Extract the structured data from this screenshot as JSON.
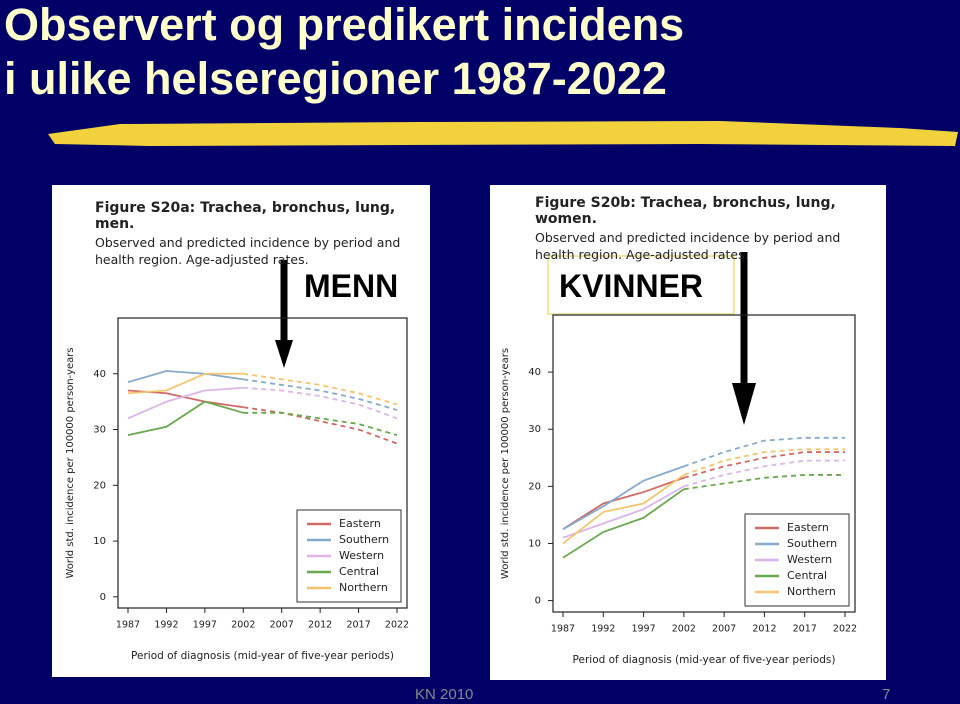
{
  "slide": {
    "title": [
      "Observert og predikert incidens",
      "i ulike helseregioner 1987-2022"
    ],
    "labels": [
      "MENN",
      "KVINNER"
    ],
    "footer": "KN 2010",
    "page": "7"
  },
  "chart_data": [
    {
      "type": "line",
      "title": "Figure S20a: Trachea, bronchus, lung, men.",
      "subtitle": "Observed and predicted incidence by period and health region. Age-adjusted rates.",
      "x_label": "Period of diagnosis (mid-year of five-year periods)",
      "y_label": "World std. incidence per 100000 person-years",
      "categories": [
        "1987",
        "1992",
        "1997",
        "2002",
        "2007",
        "2012",
        "2017",
        "2022"
      ],
      "ylim": [
        -2,
        50
      ],
      "yticks": [
        0,
        10,
        20,
        30,
        40
      ],
      "legend": "lower right",
      "series": [
        {
          "name": "Eastern",
          "color": "#d06a66",
          "values": [
            37,
            36.5,
            35,
            34,
            null,
            null,
            null,
            null
          ],
          "predicted": [
            null,
            null,
            null,
            34,
            33,
            31.5,
            30,
            27.5
          ]
        },
        {
          "name": "Southern",
          "color": "#86aacb",
          "values": [
            38.5,
            40.5,
            40,
            39,
            null,
            null,
            null,
            null
          ],
          "predicted": [
            null,
            null,
            null,
            39,
            38,
            37,
            35.5,
            33.5
          ]
        },
        {
          "name": "Western",
          "color": "#dcb6e8",
          "values": [
            32,
            35,
            37,
            37.5,
            null,
            null,
            null,
            null
          ],
          "predicted": [
            null,
            null,
            null,
            37.5,
            37,
            36,
            34.5,
            32
          ]
        },
        {
          "name": "Central",
          "color": "#6aa84f",
          "values": [
            29,
            30.5,
            35,
            33,
            null,
            null,
            null,
            null
          ],
          "predicted": [
            null,
            null,
            null,
            33,
            33,
            32,
            31,
            29
          ]
        },
        {
          "name": "Northern",
          "color": "#f5c46e",
          "values": [
            36.5,
            37,
            40,
            40,
            null,
            null,
            null,
            null
          ],
          "predicted": [
            null,
            null,
            null,
            40,
            39,
            38,
            36.5,
            34.5
          ]
        }
      ]
    },
    {
      "type": "line",
      "title": "Figure S20b: Trachea, bronchus, lung, women.",
      "subtitle": "Observed and predicted incidence by period and health region. Age-adjusted rates.",
      "x_label": "Period of diagnosis (mid-year of five-year periods)",
      "y_label": "World std. incidence per 100000 person-years",
      "categories": [
        "1987",
        "1992",
        "1997",
        "2002",
        "2007",
        "2012",
        "2017",
        "2022"
      ],
      "ylim": [
        -2,
        50
      ],
      "yticks": [
        0,
        10,
        20,
        30,
        40
      ],
      "legend": "lower right",
      "series": [
        {
          "name": "Eastern",
          "color": "#d06a66",
          "values": [
            12.5,
            17,
            19,
            21.5,
            null,
            null,
            null,
            null
          ],
          "predicted": [
            null,
            null,
            null,
            21.5,
            23.5,
            25,
            26,
            26
          ]
        },
        {
          "name": "Southern",
          "color": "#86aacb",
          "values": [
            12.5,
            16.5,
            21,
            23.5,
            null,
            null,
            null,
            null
          ],
          "predicted": [
            null,
            null,
            null,
            23.5,
            26,
            28,
            28.5,
            28.5
          ]
        },
        {
          "name": "Western",
          "color": "#dcb6e8",
          "values": [
            11,
            13.5,
            16,
            20,
            null,
            null,
            null,
            null
          ],
          "predicted": [
            null,
            null,
            null,
            20,
            22,
            23.5,
            24.5,
            24.5
          ]
        },
        {
          "name": "Central",
          "color": "#6aa84f",
          "values": [
            7.5,
            12,
            14.5,
            19.5,
            null,
            null,
            null,
            null
          ],
          "predicted": [
            null,
            null,
            null,
            19.5,
            20.5,
            21.5,
            22,
            22
          ]
        },
        {
          "name": "Northern",
          "color": "#f5c46e",
          "values": [
            10,
            15.5,
            17,
            22,
            null,
            null,
            null,
            null
          ],
          "predicted": [
            null,
            null,
            null,
            22,
            24.5,
            26,
            26.5,
            26.5
          ]
        }
      ]
    }
  ]
}
